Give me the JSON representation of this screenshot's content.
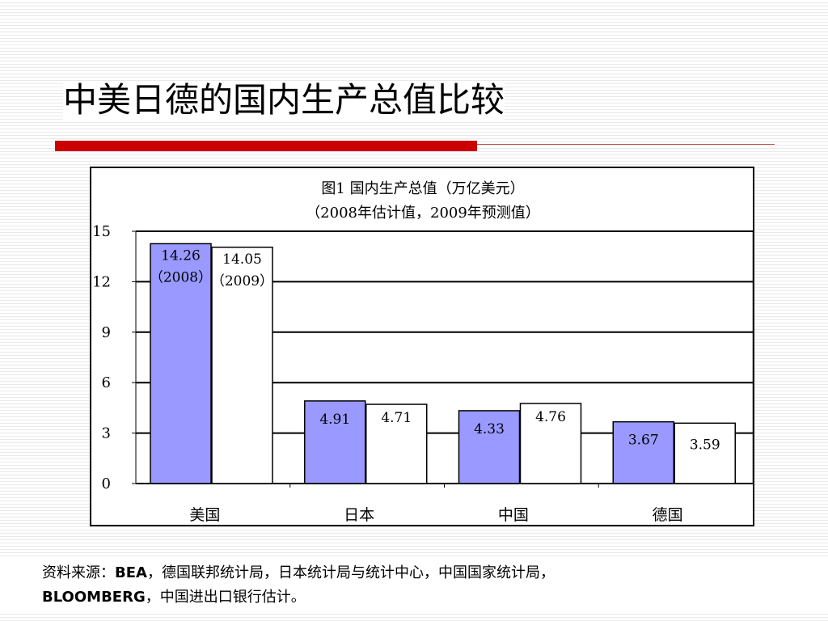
{
  "slide": {
    "title": "中美日德的国内生产总值比较"
  },
  "footnote": {
    "line1_prefix": "资料来源：",
    "line1_bold": "BEA",
    "line1_rest": "，德国联邦统计局，日本统计局与统计中心，中国国家统计局，",
    "line2_bold": "BLOOMBERG",
    "line2_rest": "，中国进出口银行估计。"
  },
  "colors": {
    "series_2008": "#9999ff",
    "series_2009": "#ffffff",
    "accent_rule": "#cc0000"
  },
  "chart_data": {
    "type": "bar",
    "title": "图1 国内生产总值（万亿美元）",
    "subtitle": "（2008年估计值，2009年预测值）",
    "categories": [
      "美国",
      "日本",
      "中国",
      "德国"
    ],
    "series": [
      {
        "values": [
          14.26,
          4.91,
          4.33,
          3.67
        ],
        "labels": [
          "14.26\n（2008）",
          "4.91",
          "4.33",
          "3.67"
        ]
      },
      {
        "values": [
          14.05,
          4.71,
          4.76,
          3.59
        ],
        "labels": [
          "14.05\n（2009）",
          "4.71",
          "4.76",
          "3.59"
        ]
      }
    ],
    "y_ticks": [
      "0",
      "3",
      "6",
      "9",
      "12",
      "15"
    ],
    "ylim": [
      0,
      15
    ],
    "grid": true,
    "legend": "none"
  }
}
